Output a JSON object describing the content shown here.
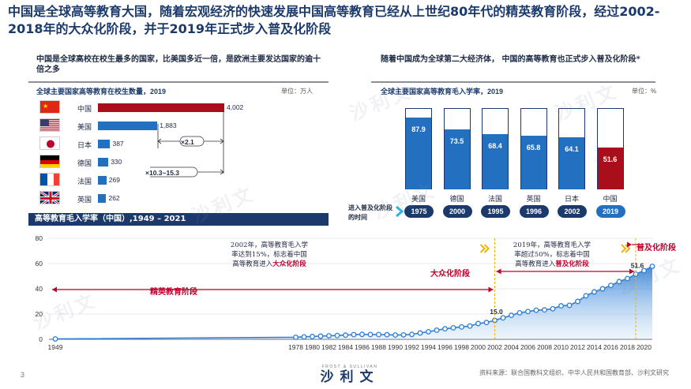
{
  "header": {
    "title": "中国是全球高等教育大国，随着宏观经济的快速发展中国高等教育已经从上世纪80年代的精英教育阶段，经过2002-2018年的大众化阶段，并于2019年正式步入普及化阶段"
  },
  "left_panel": {
    "subtitle": "中国是全球高校在校生最多的国家，比美国多近一倍，是欧洲主要发达国家的逾十倍之多",
    "chart_title": "全球主要国家高等教育在校生数量，2019",
    "unit": "单位：万人",
    "ratio_1": "×2.1",
    "ratio_2": "×10.3~15.3"
  },
  "right_panel": {
    "subtitle": "随着中国成为全球第二大经济体，  中国的高等教育也正式步入普及化阶段*",
    "chart_title": "全球主要国家高等教育毛入学率，2019",
    "unit": "单位：%",
    "timing_label": "进入普及化阶段的时间"
  },
  "bottom_panel": {
    "banner": "高等教育毛入学率（中国）,1949 – 2021",
    "annotation_2002": [
      "2002年，高等教育毛入学",
      "率达到15%，标志着中国",
      "高等教育进入",
      "大众化阶段"
    ],
    "annotation_2019": [
      "2019年，高等教育毛入学",
      "率超过50%，标志着中国",
      "高等教育进入",
      "普及化阶段"
    ],
    "phase_elite": "精英教育阶段",
    "phase_mass": "大众化阶段",
    "phase_universal": "普及化阶段"
  },
  "footer": {
    "page": "3",
    "source": "资料来源：联合国教科文组织、中华人民共和国教育部、沙利文研究",
    "logo_small": "FROST & SULLIVAN",
    "logo_big": "沙利文"
  },
  "watermark": "沙利文",
  "colors": {
    "navy": "#1b3a6b",
    "blue": "#2470c0",
    "red": "#a80f1a",
    "brightRed": "#c0002b",
    "gold": "#f0b400"
  },
  "chart_data": [
    {
      "type": "bar",
      "orientation": "horizontal",
      "title": "全球主要国家高等教育在校生数量，2019",
      "unit": "单位：万人",
      "categories": [
        "中国",
        "美国",
        "日本",
        "德国",
        "法国",
        "英国"
      ],
      "values": [
        4002,
        1883,
        387,
        330,
        269,
        262
      ],
      "value_labels": [
        "4,002",
        "1,883",
        "387",
        "330",
        "269",
        "262"
      ],
      "highlight": "中国"
    },
    {
      "type": "bar",
      "orientation": "vertical",
      "title": "全球主要国家高等教育毛入学率，2019",
      "unit": "单位：%",
      "categories": [
        "美国",
        "德国",
        "法国",
        "英国",
        "日本",
        "中国"
      ],
      "values": [
        87.9,
        73.5,
        68.4,
        65.8,
        64.1,
        51.6
      ],
      "max": 100,
      "universal_years": [
        "1975",
        "2000",
        "1995",
        "1996",
        "2002",
        "2019"
      ],
      "highlight": "中国"
    },
    {
      "type": "area",
      "title": "高等教育毛入学率（中国）,1949 – 2021",
      "xlim": [
        1949,
        2021
      ],
      "ylim": [
        0,
        80
      ],
      "yticks": [
        0,
        20,
        40,
        60,
        80
      ],
      "xticks": [
        "1949",
        "1978",
        "1980",
        "1982",
        "1984",
        "1986",
        "1988",
        "1990",
        "1992",
        "1994",
        "1996",
        "1998",
        "2000",
        "2002",
        "2004",
        "2006",
        "2008",
        "2010",
        "2012",
        "2014",
        "2016",
        "2018",
        "2020"
      ],
      "x": [
        1949,
        1978,
        1979,
        1980,
        1981,
        1982,
        1983,
        1984,
        1985,
        1986,
        1987,
        1988,
        1989,
        1990,
        1991,
        1992,
        1993,
        1994,
        1995,
        1996,
        1997,
        1998,
        1999,
        2000,
        2001,
        2002,
        2003,
        2004,
        2005,
        2006,
        2007,
        2008,
        2009,
        2010,
        2011,
        2012,
        2013,
        2014,
        2015,
        2016,
        2017,
        2018,
        2019,
        2020,
        2021
      ],
      "y": [
        0.3,
        1.6,
        1.9,
        2.2,
        2.5,
        2.8,
        3.0,
        3.3,
        3.7,
        3.9,
        3.8,
        3.7,
        3.6,
        3.4,
        3.5,
        3.9,
        5.0,
        6.0,
        7.2,
        8.3,
        9.1,
        9.8,
        10.5,
        12.5,
        13.3,
        15.0,
        17.0,
        19.0,
        21.0,
        22.0,
        23.0,
        23.3,
        24.2,
        26.5,
        26.9,
        30.0,
        34.5,
        37.5,
        40.0,
        42.7,
        45.7,
        48.1,
        51.6,
        54.4,
        57.8
      ],
      "annotations": [
        {
          "x": 2002,
          "y": 15.0,
          "label": "15.0"
        },
        {
          "x": 2019,
          "y": 51.6,
          "label": "51.6"
        }
      ]
    }
  ]
}
